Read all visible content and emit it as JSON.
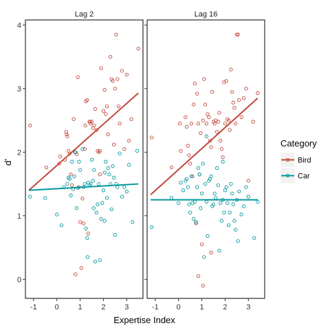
{
  "chart_data": {
    "type": "scatter",
    "xlabel": "Expertise Index",
    "ylabel": "d'",
    "xlim": [
      -1.35,
      3.7
    ],
    "ylim": [
      -0.3,
      4.08
    ],
    "xticks": [
      "-1",
      "0",
      "1",
      "2",
      "3"
    ],
    "yticks": [
      "0",
      "1",
      "2",
      "3",
      "4"
    ],
    "legend": {
      "title": "Category",
      "position": "right",
      "items": [
        "Bird",
        "Car"
      ]
    },
    "colors": {
      "Bird": "#c0473a",
      "Car": "#00979c"
    },
    "panels": [
      {
        "title": "Lag 2",
        "series": [
          {
            "name": "Bird",
            "fit": {
              "x": [
                -1.2,
                3.5
              ],
              "y": [
                1.4,
                2.93
              ]
            },
            "points": [
              [
                -1.15,
                2.42
              ],
              [
                -0.45,
                1.76
              ],
              [
                0.1,
                1.82
              ],
              [
                0.15,
                1.93
              ],
              [
                0.35,
                1.88
              ],
              [
                0.4,
                2.32
              ],
              [
                0.42,
                2.28
              ],
              [
                0.45,
                2.25
              ],
              [
                0.5,
                2.02
              ],
              [
                0.55,
                1.98
              ],
              [
                0.6,
                1.65
              ],
              [
                0.65,
                1.48
              ],
              [
                0.72,
                2.52
              ],
              [
                0.78,
                2.0
              ],
              [
                0.85,
                1.97
              ],
              [
                0.9,
                3.18
              ],
              [
                0.95,
                1.45
              ],
              [
                1.0,
                0.9
              ],
              [
                1.05,
                0.18
              ],
              [
                1.1,
                1.27
              ],
              [
                1.15,
                0.88
              ],
              [
                1.2,
                2.05
              ],
              [
                1.22,
                2.42
              ],
              [
                1.25,
                2.8
              ],
              [
                1.3,
                2.82
              ],
              [
                1.35,
                0.72
              ],
              [
                1.4,
                2.48
              ],
              [
                1.42,
                2.48
              ],
              [
                1.45,
                2.45
              ],
              [
                1.5,
                2.48
              ],
              [
                1.55,
                2.38
              ],
              [
                1.6,
                2.42
              ],
              [
                1.65,
                2.68
              ],
              [
                1.7,
                2.35
              ],
              [
                1.75,
                2.02
              ],
              [
                1.8,
                2.0
              ],
              [
                1.85,
                2.02
              ],
              [
                1.9,
                3.32
              ],
              [
                2.0,
                2.65
              ],
              [
                2.05,
                2.98
              ],
              [
                2.1,
                2.6
              ],
              [
                2.15,
                2.72
              ],
              [
                2.2,
                2.28
              ],
              [
                2.3,
                3.5
              ],
              [
                2.35,
                3.15
              ],
              [
                2.4,
                3.12
              ],
              [
                2.45,
                2.12
              ],
              [
                2.5,
                3.0
              ],
              [
                2.55,
                3.85
              ],
              [
                2.6,
                3.15
              ],
              [
                2.65,
                2.72
              ],
              [
                2.7,
                2.45
              ],
              [
                2.8,
                3.28
              ],
              [
                2.9,
                2.05
              ],
              [
                3.0,
                3.22
              ],
              [
                3.1,
                2.18
              ],
              [
                3.2,
                2.52
              ],
              [
                3.5,
                3.63
              ],
              [
                0.8,
                0.08
              ],
              [
                1.85,
                1.65
              ]
            ]
          },
          {
            "name": "Car",
            "fit": {
              "x": [
                -1.2,
                3.5
              ],
              "y": [
                1.4,
                1.5
              ]
            },
            "points": [
              [
                -1.15,
                1.3
              ],
              [
                -0.5,
                1.28
              ],
              [
                0.0,
                1.02
              ],
              [
                0.2,
                0.85
              ],
              [
                0.3,
                1.45
              ],
              [
                0.45,
                1.5
              ],
              [
                0.5,
                1.6
              ],
              [
                0.55,
                1.58
              ],
              [
                0.6,
                1.32
              ],
              [
                0.65,
                1.85
              ],
              [
                0.7,
                1.42
              ],
              [
                0.75,
                1.62
              ],
              [
                0.8,
                2.0
              ],
              [
                0.85,
                1.12
              ],
              [
                0.9,
                1.44
              ],
              [
                1.0,
                1.72
              ],
              [
                1.1,
                2.05
              ],
              [
                1.15,
                1.45
              ],
              [
                1.2,
                1.5
              ],
              [
                1.25,
                0.8
              ],
              [
                1.3,
                0.65
              ],
              [
                1.35,
                1.52
              ],
              [
                1.4,
                1.48
              ],
              [
                1.45,
                1.5
              ],
              [
                1.5,
                1.88
              ],
              [
                1.55,
                1.55
              ],
              [
                1.6,
                1.72
              ],
              [
                1.65,
                0.28
              ],
              [
                1.7,
                1.05
              ],
              [
                1.75,
                1.18
              ],
              [
                1.8,
                1.5
              ],
              [
                1.85,
                0.3
              ],
              [
                1.9,
                0.95
              ],
              [
                1.95,
                1.2
              ],
              [
                2.0,
                1.4
              ],
              [
                2.05,
                0.92
              ],
              [
                2.1,
                1.85
              ],
              [
                2.15,
                1.28
              ],
              [
                2.2,
                1.75
              ],
              [
                2.25,
                1.65
              ],
              [
                2.3,
                1.5
              ],
              [
                2.35,
                1.1
              ],
              [
                2.4,
                1.78
              ],
              [
                2.45,
                1.6
              ],
              [
                2.5,
                0.7
              ],
              [
                2.55,
                1.5
              ],
              [
                2.6,
                1.45
              ],
              [
                2.7,
                1.98
              ],
              [
                2.8,
                1.3
              ],
              [
                2.9,
                1.45
              ],
              [
                3.0,
                1.38
              ],
              [
                3.1,
                1.8
              ],
              [
                3.25,
                0.9
              ],
              [
                3.45,
                2.02
              ],
              [
                1.32,
                0.35
              ],
              [
                0.95,
                1.85
              ],
              [
                1.58,
                1.12
              ],
              [
                2.05,
                1.68
              ]
            ]
          }
        ]
      },
      {
        "title": "Lag 16",
        "series": [
          {
            "name": "Bird",
            "fit": {
              "x": [
                -1.2,
                3.4
              ],
              "y": [
                1.33,
                2.85
              ]
            },
            "points": [
              [
                -1.15,
                2.23
              ],
              [
                -0.3,
                1.76
              ],
              [
                0.05,
                2.45
              ],
              [
                0.1,
                2.02
              ],
              [
                0.3,
                2.55
              ],
              [
                0.35,
                2.4
              ],
              [
                0.4,
                2.1
              ],
              [
                0.45,
                1.95
              ],
              [
                0.5,
                1.82
              ],
              [
                0.55,
                2.45
              ],
              [
                0.6,
                1.62
              ],
              [
                0.65,
                2.75
              ],
              [
                0.7,
                3.08
              ],
              [
                0.75,
                0.88
              ],
              [
                0.8,
                2.92
              ],
              [
                0.85,
                2.45
              ],
              [
                0.9,
                1.65
              ],
              [
                0.95,
                2.3
              ],
              [
                1.0,
                0.55
              ],
              [
                1.05,
                2.5
              ],
              [
                1.1,
                3.15
              ],
              [
                1.15,
                2.75
              ],
              [
                1.2,
                2.45
              ],
              [
                1.25,
                2.6
              ],
              [
                1.3,
                2.55
              ],
              [
                1.35,
                2.18
              ],
              [
                1.4,
                2.08
              ],
              [
                1.45,
                2.95
              ],
              [
                1.5,
                2.48
              ],
              [
                1.55,
                2.45
              ],
              [
                1.6,
                2.5
              ],
              [
                1.65,
                2.32
              ],
              [
                1.7,
                2.48
              ],
              [
                1.75,
                2.62
              ],
              [
                1.8,
                2.18
              ],
              [
                1.85,
                2.05
              ],
              [
                1.9,
                1.92
              ],
              [
                1.95,
                3.1
              ],
              [
                2.0,
                2.45
              ],
              [
                2.05,
                3.12
              ],
              [
                2.1,
                2.52
              ],
              [
                2.15,
                2.5
              ],
              [
                2.2,
                2.35
              ],
              [
                2.25,
                3.3
              ],
              [
                2.3,
                2.95
              ],
              [
                2.35,
                2.78
              ],
              [
                2.4,
                2.7
              ],
              [
                2.45,
                2.45
              ],
              [
                2.5,
                3.85
              ],
              [
                2.55,
                3.85
              ],
              [
                2.6,
                2.82
              ],
              [
                2.7,
                2.55
              ],
              [
                2.8,
                2.85
              ],
              [
                2.9,
                3.0
              ],
              [
                3.0,
                1.55
              ],
              [
                3.2,
                2.48
              ],
              [
                3.4,
                2.93
              ],
              [
                0.85,
                0.05
              ],
              [
                1.05,
                -0.1
              ],
              [
                1.4,
                0.42
              ]
            ]
          },
          {
            "name": "Car",
            "fit": {
              "x": [
                -1.2,
                3.4
              ],
              "y": [
                1.25,
                1.25
              ]
            },
            "points": [
              [
                -1.15,
                0.82
              ],
              [
                -0.3,
                1.28
              ],
              [
                0.0,
                1.2
              ],
              [
                0.1,
                1.52
              ],
              [
                0.2,
                1.4
              ],
              [
                0.3,
                1.55
              ],
              [
                0.35,
                1.58
              ],
              [
                0.4,
                1.45
              ],
              [
                0.45,
                1.18
              ],
              [
                0.5,
                1.05
              ],
              [
                0.55,
                1.62
              ],
              [
                0.6,
                1.2
              ],
              [
                0.65,
                0.95
              ],
              [
                0.7,
                1.22
              ],
              [
                0.75,
                0.9
              ],
              [
                0.8,
                1.45
              ],
              [
                0.85,
                1.75
              ],
              [
                0.9,
                1.65
              ],
              [
                0.95,
                1.12
              ],
              [
                1.0,
                1.35
              ],
              [
                1.05,
                1.82
              ],
              [
                1.1,
                0.35
              ],
              [
                1.15,
                1.5
              ],
              [
                1.2,
                1.22
              ],
              [
                1.25,
                0.68
              ],
              [
                1.3,
                1.55
              ],
              [
                1.35,
                1.58
              ],
              [
                1.4,
                1.62
              ],
              [
                1.45,
                1.15
              ],
              [
                1.5,
                1.18
              ],
              [
                1.55,
                1.35
              ],
              [
                1.6,
                1.28
              ],
              [
                1.65,
                1.75
              ],
              [
                1.7,
                1.48
              ],
              [
                1.75,
                0.45
              ],
              [
                1.8,
                1.2
              ],
              [
                1.85,
                0.92
              ],
              [
                1.9,
                1.25
              ],
              [
                1.95,
                1.05
              ],
              [
                2.0,
                1.4
              ],
              [
                2.05,
                1.45
              ],
              [
                2.1,
                1.2
              ],
              [
                2.15,
                0.85
              ],
              [
                2.2,
                1.05
              ],
              [
                2.25,
                1.5
              ],
              [
                2.3,
                1.35
              ],
              [
                2.35,
                1.18
              ],
              [
                2.4,
                0.92
              ],
              [
                2.45,
                0.78
              ],
              [
                2.5,
                1.25
              ],
              [
                2.55,
                0.6
              ],
              [
                2.6,
                1.38
              ],
              [
                2.7,
                1.02
              ],
              [
                2.8,
                1.15
              ],
              [
                2.9,
                1.45
              ],
              [
                3.0,
                1.3
              ],
              [
                3.25,
                0.65
              ],
              [
                3.4,
                1.22
              ],
              [
                1.2,
                2.25
              ],
              [
                1.9,
                1.85
              ]
            ]
          }
        ]
      }
    ]
  }
}
